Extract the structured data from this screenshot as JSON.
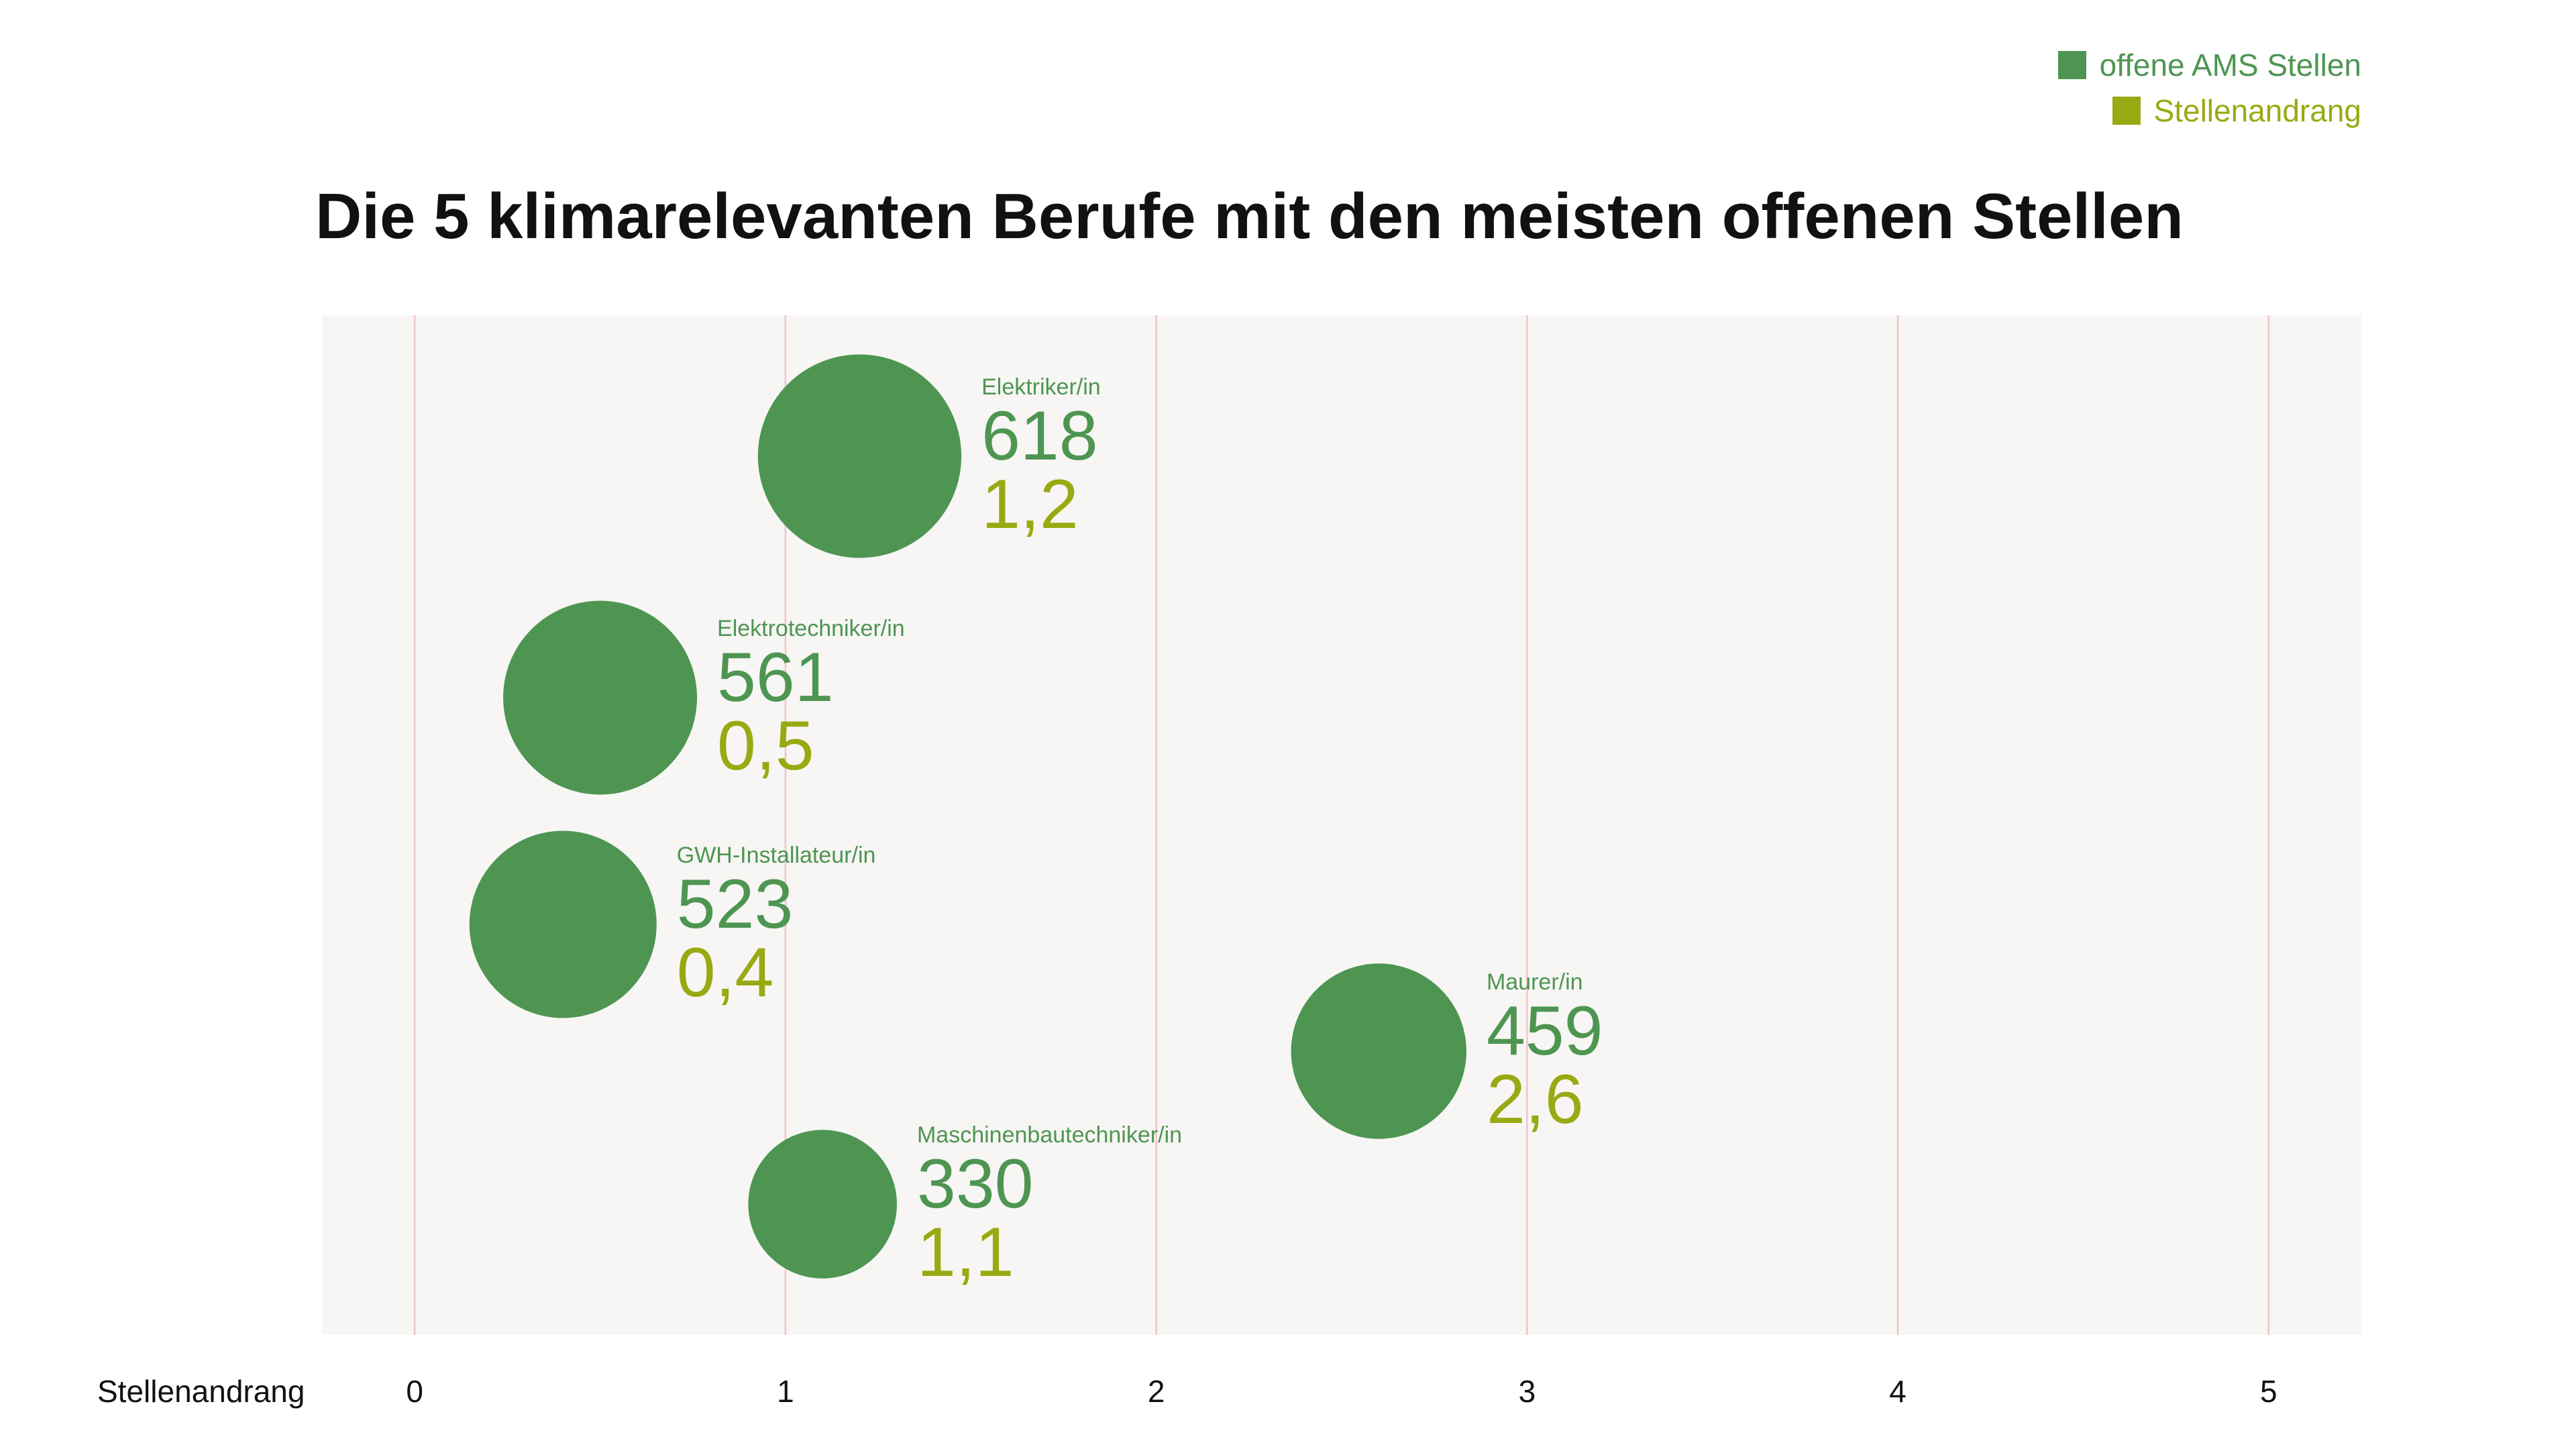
{
  "legend": {
    "items": [
      {
        "label": "offene AMS Stellen",
        "color": "#4e9552"
      },
      {
        "label": "Stellenandrang",
        "color": "#98aa12"
      }
    ]
  },
  "chart_data": {
    "type": "scatter",
    "title": "Die 5 klimarelevanten Berufe mit den meisten offenen Stellen",
    "xlabel": "Stellenandrang",
    "ylabel": "",
    "xlim": [
      -0.25,
      5.25
    ],
    "xticks": [
      0,
      1,
      2,
      3,
      4,
      5
    ],
    "grid": true,
    "legend_position": "top-right",
    "colors": {
      "bubble": "#4e9552",
      "name": "#4e9552",
      "stellen": "#4e9552",
      "andrang": "#98aa12",
      "plot_background": "#f7f6f4",
      "gridline": "#f0c4c8"
    },
    "series": [
      {
        "name": "Elektriker/in",
        "stellen": 618,
        "andrang": 1.2,
        "stellen_label": "618",
        "andrang_label": "1,2"
      },
      {
        "name": "Elektrotechniker/in",
        "stellen": 561,
        "andrang": 0.5,
        "stellen_label": "561",
        "andrang_label": "0,5"
      },
      {
        "name": "GWH-Installateur/in",
        "stellen": 523,
        "andrang": 0.4,
        "stellen_label": "523",
        "andrang_label": "0,4"
      },
      {
        "name": "Maurer/in",
        "stellen": 459,
        "andrang": 2.6,
        "stellen_label": "459",
        "andrang_label": "2,6"
      },
      {
        "name": "Maschinenbautechniker/in",
        "stellen": 330,
        "andrang": 1.1,
        "stellen_label": "330",
        "andrang_label": "1,1"
      }
    ]
  }
}
